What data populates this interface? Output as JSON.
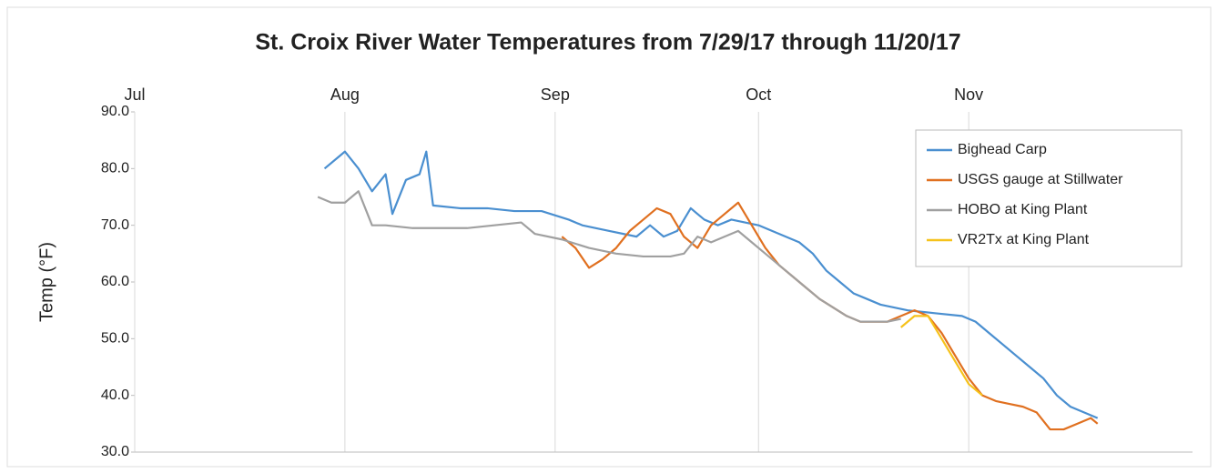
{
  "chart_data": {
    "type": "line",
    "title": "St. Croix River Water Temperatures from 7/29/17 through 11/20/17",
    "ylabel": "Temp (°F)",
    "xlim": [
      0,
      156
    ],
    "ylim": [
      30,
      90
    ],
    "xticks": [
      {
        "value": 0,
        "label": "Jul"
      },
      {
        "value": 31,
        "label": "Aug"
      },
      {
        "value": 62,
        "label": "Sep"
      },
      {
        "value": 92,
        "label": "Oct"
      },
      {
        "value": 123,
        "label": "Nov"
      }
    ],
    "yticks": [
      {
        "value": 30,
        "label": "30.0"
      },
      {
        "value": 40,
        "label": "40.0"
      },
      {
        "value": 50,
        "label": "50.0"
      },
      {
        "value": 60,
        "label": "60.0"
      },
      {
        "value": 70,
        "label": "70.0"
      },
      {
        "value": 80,
        "label": "80.0"
      },
      {
        "value": 90,
        "label": "90.0"
      }
    ],
    "grid": true,
    "legend": "upper right",
    "series": [
      {
        "name": "Bighead Carp",
        "color": "#4a8fd0",
        "x": [
          28,
          30,
          31,
          33,
          35,
          37,
          38,
          40,
          42,
          43,
          44,
          48,
          52,
          56,
          60,
          64,
          66,
          70,
          74,
          76,
          78,
          80,
          82,
          84,
          86,
          88,
          90,
          92,
          94,
          96,
          98,
          100,
          102,
          104,
          106,
          108,
          110,
          114,
          118,
          122,
          124,
          126,
          128,
          130,
          132,
          134,
          136,
          138,
          140,
          142
        ],
        "values": [
          80,
          82,
          83,
          80,
          76,
          79,
          72,
          78,
          79,
          83,
          73.5,
          73,
          73,
          72.5,
          72.5,
          71,
          70,
          69,
          68,
          70,
          68,
          69,
          73,
          71,
          70,
          71,
          70.5,
          70,
          69,
          68,
          67,
          65,
          62,
          60,
          58,
          57,
          56,
          55,
          54.5,
          54,
          53,
          51,
          49,
          47,
          45,
          43,
          40,
          38,
          37,
          36
        ]
      },
      {
        "name": "USGS gauge at Stillwater",
        "color": "#e07020",
        "x": [
          63,
          65,
          67,
          69,
          71,
          73,
          75,
          77,
          79,
          81,
          83,
          85,
          87,
          89,
          91,
          93,
          95,
          97,
          99,
          101,
          103,
          105,
          107,
          109,
          111,
          113,
          115,
          117,
          119,
          121,
          123,
          125,
          127,
          129,
          131,
          133,
          135,
          137,
          139,
          141,
          142
        ],
        "values": [
          68,
          66,
          62.5,
          64,
          66,
          69,
          71,
          73,
          72,
          68,
          66,
          70,
          72,
          74,
          70,
          66,
          63,
          61,
          59,
          57,
          55.5,
          54,
          53,
          53,
          53,
          54,
          55,
          54,
          51,
          47,
          43,
          40,
          39,
          38.5,
          38,
          37,
          34,
          34,
          35,
          36,
          35
        ]
      },
      {
        "name": "HOBO at King Plant",
        "color": "#a0a0a0",
        "x": [
          27,
          29,
          31,
          33,
          35,
          37,
          41,
          45,
          49,
          53,
          57,
          59,
          63,
          67,
          71,
          75,
          79,
          81,
          83,
          85,
          87,
          89,
          91,
          93,
          95,
          97,
          99,
          101,
          103,
          105,
          107,
          109,
          111,
          113
        ],
        "values": [
          75,
          74,
          74,
          76,
          70,
          70,
          69.5,
          69.5,
          69.5,
          70,
          70.5,
          68.5,
          67.5,
          66,
          65,
          64.5,
          64.5,
          65,
          68,
          67,
          68,
          69,
          67,
          65,
          63,
          61,
          59,
          57,
          55.5,
          54,
          53,
          53,
          53,
          53.5
        ]
      },
      {
        "name": "VR2Tx at King Plant",
        "color": "#f6c21b",
        "x": [
          113,
          115,
          117,
          119,
          121,
          123,
          125
        ],
        "values": [
          52,
          54,
          54,
          50,
          46,
          42,
          40
        ]
      }
    ]
  }
}
